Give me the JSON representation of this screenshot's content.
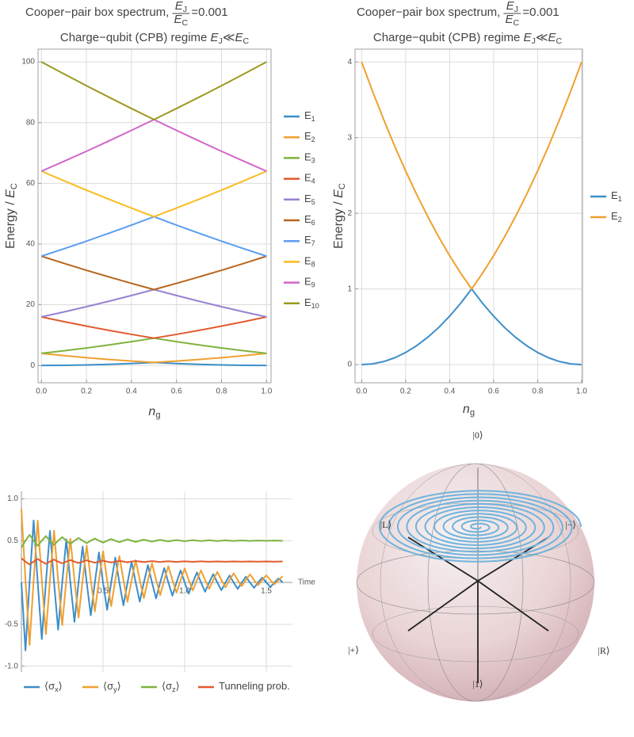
{
  "chart_data": [
    {
      "type": "line",
      "title": "Cooper−pair box spectrum,",
      "fraction": {
        "num": "E",
        "num_sub": "J",
        "den": "E",
        "den_sub": "C"
      },
      "ratio": "=0.001",
      "subtitle": "Charge−qubit (CPB) regime ",
      "regime": {
        "lhs": "E",
        "lhs_sub": "J",
        "relation": "≪",
        "rhs": "E",
        "rhs_sub": "C"
      },
      "x_label": {
        "symbol": "n",
        "sub": "g"
      },
      "y_label": {
        "text": "Energy / ",
        "symbol": "E",
        "sub": "C"
      },
      "x": [
        0,
        0.1,
        0.2,
        0.3,
        0.4,
        0.5,
        0.6,
        0.7,
        0.8,
        0.9,
        1
      ],
      "series": [
        {
          "name": "E",
          "name_sub": "1",
          "color": "#3d8ec9",
          "values": [
            0,
            0.04,
            0.16,
            0.36,
            0.64,
            1,
            0.64,
            0.36,
            0.16,
            0.04,
            0
          ]
        },
        {
          "name": "E",
          "name_sub": "2",
          "color": "#f0a030",
          "values": [
            4,
            3.24,
            2.56,
            1.96,
            1.44,
            1,
            1.44,
            1.96,
            2.56,
            3.24,
            4
          ]
        },
        {
          "name": "E",
          "name_sub": "3",
          "color": "#7fb33e",
          "values": [
            4,
            4.84,
            5.76,
            6.76,
            7.84,
            9,
            7.84,
            6.76,
            5.76,
            4.84,
            4
          ]
        },
        {
          "name": "E",
          "name_sub": "4",
          "color": "#e15b2f",
          "values": [
            16,
            14.44,
            12.96,
            11.56,
            10.24,
            9,
            10.24,
            11.56,
            12.96,
            14.44,
            16
          ]
        },
        {
          "name": "E",
          "name_sub": "5",
          "color": "#9782d0",
          "values": [
            16,
            17.64,
            19.36,
            21.16,
            23.04,
            25,
            23.04,
            21.16,
            19.36,
            17.64,
            16
          ]
        },
        {
          "name": "E",
          "name_sub": "6",
          "color": "#b8651e",
          "values": [
            36,
            33.64,
            31.36,
            29.16,
            27.04,
            25,
            27.04,
            29.16,
            31.36,
            33.64,
            36
          ]
        },
        {
          "name": "E",
          "name_sub": "7",
          "color": "#5b9ef0",
          "values": [
            36,
            38.44,
            40.96,
            43.56,
            46.24,
            49,
            46.24,
            43.56,
            40.96,
            38.44,
            36
          ]
        },
        {
          "name": "E",
          "name_sub": "8",
          "color": "#f9bb21",
          "values": [
            64,
            60.84,
            57.76,
            54.76,
            51.84,
            49,
            51.84,
            54.76,
            57.76,
            60.84,
            64
          ]
        },
        {
          "name": "E",
          "name_sub": "9",
          "color": "#d265c8",
          "values": [
            64,
            67.24,
            70.56,
            73.96,
            77.44,
            81,
            77.44,
            73.96,
            70.56,
            67.24,
            64
          ]
        },
        {
          "name": "E",
          "name_sub": "10",
          "color": "#9a9a20",
          "values": [
            100,
            96.04,
            92.16,
            88.36,
            84.64,
            81,
            84.64,
            88.36,
            92.16,
            96.04,
            100
          ]
        }
      ],
      "xlim": [
        -0.015,
        1.02
      ],
      "ylim": [
        -5.7,
        104.2
      ],
      "xticks": [
        {
          "value": 0,
          "label": "0.0"
        },
        0.2,
        0.4,
        0.6,
        0.8,
        {
          "value": 1,
          "label": "1.0"
        }
      ],
      "yticks": [
        0,
        20,
        40,
        60,
        80,
        100
      ],
      "grid": true,
      "frame": true,
      "legend": "right"
    },
    {
      "type": "line",
      "title": "Cooper−pair box spectrum,",
      "fraction": {
        "num": "E",
        "num_sub": "J",
        "den": "E",
        "den_sub": "C"
      },
      "ratio": "=0.001",
      "subtitle": "Charge−qubit (CPB) regime ",
      "regime": {
        "lhs": "E",
        "lhs_sub": "J",
        "relation": "≪",
        "rhs": "E",
        "rhs_sub": "C"
      },
      "x_label": {
        "symbol": "n",
        "sub": "g"
      },
      "y_label": {
        "text": "Energy / ",
        "symbol": "E",
        "sub": "C"
      },
      "x": [
        0,
        0.05,
        0.1,
        0.15,
        0.2,
        0.25,
        0.3,
        0.35,
        0.4,
        0.45,
        0.5,
        0.55,
        0.6,
        0.65,
        0.7,
        0.75,
        0.8,
        0.85,
        0.9,
        0.95,
        1
      ],
      "series": [
        {
          "name": "E",
          "name_sub": "1",
          "color": "#3d8ec9",
          "values": [
            0,
            0.01,
            0.04,
            0.09,
            0.16,
            0.25,
            0.36,
            0.49,
            0.64,
            0.81,
            1,
            0.81,
            0.64,
            0.49,
            0.36,
            0.25,
            0.16,
            0.09,
            0.04,
            0.01,
            0
          ]
        },
        {
          "name": "E",
          "name_sub": "2",
          "color": "#f0a030",
          "values": [
            4,
            3.61,
            3.24,
            2.89,
            2.56,
            2.25,
            1.96,
            1.69,
            1.44,
            1.21,
            1,
            1.21,
            1.44,
            1.69,
            1.96,
            2.25,
            2.56,
            2.89,
            3.24,
            3.61,
            4
          ]
        }
      ],
      "xlim": [
        -0.03,
        1.004
      ],
      "ylim": [
        -0.24,
        4.17
      ],
      "xticks": [
        {
          "value": 0,
          "label": "0.0"
        },
        0.2,
        0.4,
        0.6,
        0.8,
        {
          "value": 1,
          "label": "1.0"
        }
      ],
      "yticks": [
        0,
        1,
        2,
        3,
        4
      ],
      "grid": true,
      "frame": true,
      "legend": "right"
    },
    {
      "type": "line",
      "x_label": "Time",
      "x": [
        0,
        0.025,
        0.05,
        0.075,
        0.1,
        0.125,
        0.15,
        0.175,
        0.2,
        0.225,
        0.25,
        0.275,
        0.3,
        0.325,
        0.35,
        0.375,
        0.4,
        0.425,
        0.45,
        0.475,
        0.5,
        0.525,
        0.55,
        0.575,
        0.6,
        0.625,
        0.65,
        0.675,
        0.7,
        0.725,
        0.75,
        0.775,
        0.8,
        0.825,
        0.85,
        0.875,
        0.9,
        0.925,
        0.95,
        0.975,
        1,
        1.025,
        1.05,
        1.075,
        1.1,
        1.125,
        1.15,
        1.175,
        1.2,
        1.225,
        1.25,
        1.275,
        1.3,
        1.325,
        1.35,
        1.375,
        1.4,
        1.425,
        1.45,
        1.475,
        1.5,
        1.525,
        1.55,
        1.575,
        1.6
      ],
      "series": [
        {
          "name": "⟨σ",
          "name_sub": "x",
          "name_post": "⟩",
          "color": "#3d8ec9",
          "values": [
            0,
            -0.812,
            0,
            0.742,
            0,
            -0.677,
            0,
            0.618,
            0,
            -0.565,
            0,
            0.516,
            0,
            -0.471,
            0,
            0.43,
            0,
            -0.393,
            0,
            0.359,
            0,
            -0.327,
            0,
            0.299,
            0,
            -0.273,
            0,
            0.249,
            0,
            -0.228,
            0,
            0.208,
            0,
            -0.19,
            0,
            0.173,
            0,
            -0.158,
            0,
            0.145,
            0,
            -0.132,
            0,
            0.121,
            0,
            -0.11,
            0,
            0.1,
            0,
            -0.092,
            0,
            0.084,
            0,
            -0.077,
            0,
            0.07,
            0,
            -0.064,
            0,
            0.058,
            0,
            -0.053,
            0,
            0.049,
            0
          ]
        },
        {
          "name": "⟨σ",
          "name_sub": "y",
          "name_post": "⟩",
          "color": "#f0a030",
          "values": [
            0.88,
            0.03,
            -0.746,
            0.03,
            0.739,
            0.03,
            -0.617,
            0.03,
            0.621,
            0.03,
            -0.51,
            0.03,
            0.523,
            0.03,
            -0.42,
            0.03,
            0.441,
            0.03,
            -0.345,
            0.03,
            0.373,
            0.03,
            -0.283,
            0.03,
            0.316,
            0.03,
            -0.231,
            0.03,
            0.268,
            0.03,
            -0.188,
            0.03,
            0.229,
            0.03,
            -0.151,
            0.03,
            0.196,
            0.03,
            -0.121,
            0.03,
            0.168,
            0.03,
            -0.096,
            0.03,
            0.145,
            0.03,
            -0.075,
            0.03,
            0.126,
            0.03,
            -0.058,
            0.03,
            0.11,
            0.03,
            -0.043,
            0.03,
            0.097,
            0.03,
            -0.031,
            0.03,
            0.086,
            0.03,
            -0.021,
            0.03,
            0.076
          ]
        },
        {
          "name": "⟨σ",
          "name_sub": "z",
          "name_post": "⟩",
          "color": "#7fb33e",
          "values": [
            0.42,
            0.5,
            0.57,
            0.5,
            0.44,
            0.5,
            0.555,
            0.5,
            0.45,
            0.5,
            0.543,
            0.5,
            0.462,
            0.5,
            0.533,
            0.5,
            0.471,
            0.5,
            0.526,
            0.5,
            0.477,
            0.5,
            0.52,
            0.5,
            0.482,
            0.5,
            0.516,
            0.5,
            0.486,
            0.5,
            0.512,
            0.5,
            0.489,
            0.5,
            0.51,
            0.5,
            0.492,
            0.5,
            0.507,
            0.5,
            0.493,
            0.5,
            0.506,
            0.5,
            0.495,
            0.5,
            0.505,
            0.5,
            0.496,
            0.5,
            0.504,
            0.5,
            0.497,
            0.5,
            0.503,
            0.5,
            0.497,
            0.5,
            0.502,
            0.5,
            0.498,
            0.5,
            0.502,
            0.5,
            0.498
          ]
        },
        {
          "name": "Tunneling prob.",
          "color": "#e15b2f",
          "values": [
            0.29,
            0.25,
            0.215,
            0.25,
            0.281,
            0.25,
            0.223,
            0.25,
            0.274,
            0.25,
            0.229,
            0.25,
            0.269,
            0.25,
            0.233,
            0.25,
            0.265,
            0.25,
            0.237,
            0.25,
            0.261,
            0.25,
            0.24,
            0.25,
            0.259,
            0.25,
            0.242,
            0.25,
            0.257,
            0.25,
            0.244,
            0.25,
            0.255,
            0.25,
            0.245,
            0.25,
            0.254,
            0.25,
            0.246,
            0.25,
            0.253,
            0.25,
            0.247,
            0.25,
            0.253,
            0.25,
            0.248,
            0.25,
            0.252,
            0.25,
            0.248,
            0.25,
            0.252,
            0.25,
            0.249,
            0.25,
            0.252,
            0.25,
            0.249,
            0.25,
            0.251,
            0.25,
            0.249,
            0.25,
            0.251
          ]
        }
      ],
      "xlim": [
        0,
        1.66
      ],
      "ylim": [
        -1.07,
        1.09
      ],
      "xticks": [
        0.5,
        {
          "value": 1,
          "label": "1.0"
        },
        1.5
      ],
      "yticks": [
        {
          "value": -1,
          "label": "-1.0"
        },
        -0.5,
        0.5,
        {
          "value": 1,
          "label": "1.0"
        }
      ],
      "grid": true,
      "frame": false,
      "legend": "bottom"
    }
  ],
  "bloch_sphere": {
    "labels": {
      "zero": "|0⟩",
      "one": "|1⟩",
      "plus": "|+⟩",
      "minus": "|−⟩",
      "left": "|L⟩",
      "right": "|R⟩"
    }
  }
}
